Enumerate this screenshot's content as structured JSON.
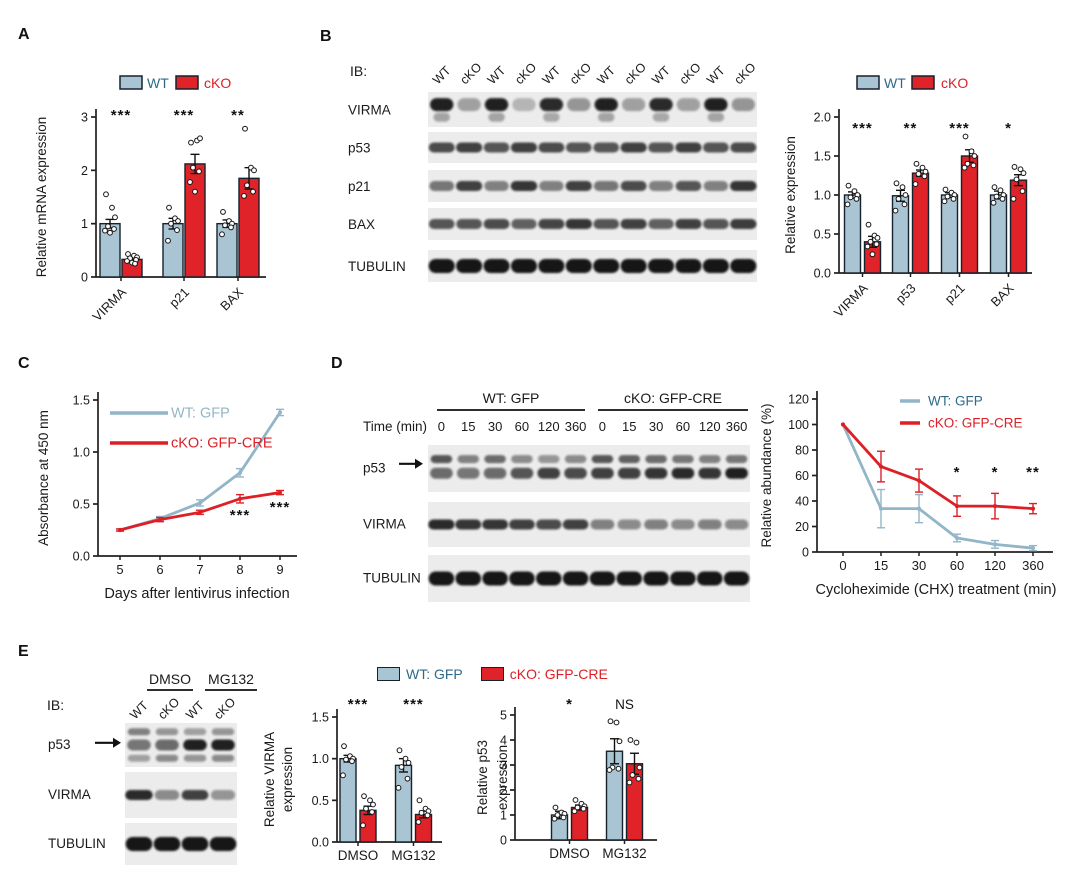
{
  "panels": {
    "A": "A",
    "B": "B",
    "C": "C",
    "D": "D",
    "E": "E"
  },
  "colors": {
    "wt_fill": "#a9c4d2",
    "wt_line": "#92b6c7",
    "wt_text": "#2d6a88",
    "cko_fill": "#e02328",
    "cko_line": "#dc2026",
    "cko_text": "#dc2026",
    "bar_stroke": "#16222c",
    "axis": "#221f1f",
    "band": "#121212",
    "strip_bg": "#ececec",
    "sig": "#111111"
  },
  "legends": {
    "wt_cko": {
      "wt": "WT",
      "cko": "cKO"
    },
    "gfp": {
      "wt": "WT: GFP",
      "cko": "cKO: GFP-CRE"
    }
  },
  "chart_data": [
    {
      "id": "panelA",
      "type": "bar",
      "ylabel": "Relative mRNA expression",
      "categories": [
        "VIRMA",
        "p21",
        "BAX"
      ],
      "yticks": [
        "0",
        "1",
        "2",
        "3"
      ],
      "ylim": [
        0,
        3
      ],
      "legend": [
        "WT",
        "cKO"
      ],
      "legend_position": "top",
      "series": [
        {
          "name": "WT",
          "values": [
            1.0,
            1.0,
            1.0
          ],
          "errors": [
            0.08,
            0.1,
            0.07
          ],
          "points": [
            [
              1.55,
              1.3,
              1.12,
              0.95,
              0.9,
              0.87,
              0.83
            ],
            [
              1.3,
              1.1,
              1.05,
              1.0,
              0.88,
              0.68
            ],
            [
              1.22,
              1.05,
              1.0,
              0.97,
              0.93,
              0.8
            ]
          ]
        },
        {
          "name": "cKO",
          "values": [
            0.33,
            2.12,
            1.85
          ],
          "errors": [
            0.03,
            0.18,
            0.2
          ],
          "points": [
            [
              0.43,
              0.4,
              0.37,
              0.35,
              0.32,
              0.3,
              0.27,
              0.25
            ],
            [
              2.52,
              2.56,
              2.6,
              2.05,
              1.98,
              1.78,
              1.6
            ],
            [
              2.78,
              2.05,
              2.0,
              1.72,
              1.6,
              1.52
            ]
          ]
        }
      ],
      "significance": [
        "***",
        "***",
        "**"
      ]
    },
    {
      "id": "panelB",
      "type": "bar",
      "ylabel": "Relative expression",
      "categories": [
        "VIRMA",
        "p53",
        "p21",
        "BAX"
      ],
      "yticks": [
        "0.0",
        "0.5",
        "1.0",
        "1.5",
        "2.0"
      ],
      "ylim": [
        0,
        2
      ],
      "legend": [
        "WT",
        "cKO"
      ],
      "legend_position": "top",
      "series": [
        {
          "name": "WT",
          "values": [
            1.0,
            0.99,
            1.0,
            1.0
          ],
          "errors": [
            0.04,
            0.07,
            0.03,
            0.05
          ],
          "points": [
            [
              1.12,
              1.05,
              1.0,
              0.97,
              0.95,
              0.88
            ],
            [
              1.15,
              1.1,
              1.0,
              0.95,
              0.88,
              0.8
            ],
            [
              1.07,
              1.03,
              1.0,
              0.98,
              0.95,
              0.92
            ],
            [
              1.1,
              1.06,
              1.0,
              0.98,
              0.95,
              0.9
            ]
          ]
        },
        {
          "name": "cKO",
          "values": [
            0.4,
            1.28,
            1.5,
            1.19
          ],
          "errors": [
            0.07,
            0.04,
            0.08,
            0.07
          ],
          "points": [
            [
              0.62,
              0.48,
              0.45,
              0.4,
              0.37,
              0.34,
              0.24
            ],
            [
              1.4,
              1.35,
              1.3,
              1.27,
              1.24,
              1.14
            ],
            [
              1.75,
              1.56,
              1.5,
              1.4,
              1.38,
              1.35
            ],
            [
              1.36,
              1.33,
              1.28,
              1.2,
              1.05,
              0.95
            ]
          ]
        }
      ],
      "significance": [
        "***",
        "**",
        "***",
        "*"
      ]
    },
    {
      "id": "panelC",
      "type": "line",
      "ylabel": "Absorbance at 450 nm",
      "xlabel": "Days after lentivirus infection",
      "x": [
        5,
        6,
        7,
        8,
        9
      ],
      "yticks": [
        "0.0",
        "0.5",
        "1.0",
        "1.5"
      ],
      "ylim": [
        0,
        1.5
      ],
      "series": [
        {
          "name": "WT: GFP",
          "values": [
            0.25,
            0.36,
            0.51,
            0.8,
            1.38
          ],
          "errors": [
            0.01,
            0.02,
            0.03,
            0.04,
            0.03
          ]
        },
        {
          "name": "cKO: GFP-CRE",
          "values": [
            0.25,
            0.35,
            0.42,
            0.55,
            0.61
          ],
          "errors": [
            0.01,
            0.02,
            0.02,
            0.04,
            0.02
          ]
        }
      ],
      "significance": [
        {
          "x": 8,
          "label": "***"
        },
        {
          "x": 9,
          "label": "***"
        }
      ]
    },
    {
      "id": "panelD",
      "type": "line",
      "ylabel": "Relative abundance (%)",
      "xlabel": "Cycloheximide (CHX) treatment (min)",
      "x": [
        0,
        15,
        30,
        60,
        120,
        360
      ],
      "yticks": [
        "0",
        "20",
        "40",
        "60",
        "80",
        "100",
        "120"
      ],
      "ylim": [
        0,
        120
      ],
      "series": [
        {
          "name": "WT: GFP",
          "values": [
            100,
            34,
            34,
            11,
            6,
            3
          ],
          "errors": [
            0,
            15,
            11,
            3,
            3,
            2
          ]
        },
        {
          "name": "cKO: GFP-CRE",
          "values": [
            100,
            67,
            56,
            36,
            36,
            34
          ],
          "errors": [
            0,
            12,
            9,
            8,
            10,
            4
          ]
        }
      ],
      "significance": [
        {
          "x": 60,
          "label": "*"
        },
        {
          "x": 120,
          "label": "*"
        },
        {
          "x": 360,
          "label": "**"
        }
      ]
    },
    {
      "id": "panelE_virma",
      "type": "bar",
      "ylabel": [
        "Relative VIRMA",
        "expression"
      ],
      "categories": [
        "DMSO",
        "MG132"
      ],
      "yticks": [
        "0.0",
        "0.5",
        "1.0",
        "1.5"
      ],
      "ylim": [
        0,
        1.5
      ],
      "legend": [
        "WT: GFP",
        "cKO: GFP-CRE"
      ],
      "series": [
        {
          "name": "WT: GFP",
          "values": [
            1.0,
            0.92
          ],
          "errors": [
            0.04,
            0.08
          ],
          "points": [
            [
              1.15,
              1.03,
              1.0,
              0.99,
              0.97,
              0.8
            ],
            [
              1.1,
              1.0,
              0.95,
              0.9,
              0.76,
              0.65
            ]
          ]
        },
        {
          "name": "cKO: GFP-CRE",
          "values": [
            0.38,
            0.33
          ],
          "errors": [
            0.05,
            0.04
          ],
          "points": [
            [
              0.55,
              0.5,
              0.45,
              0.4,
              0.36,
              0.2
            ],
            [
              0.5,
              0.4,
              0.37,
              0.35,
              0.32,
              0.24
            ]
          ]
        }
      ],
      "significance": [
        "***",
        "***"
      ]
    },
    {
      "id": "panelE_p53",
      "type": "bar",
      "ylabel": [
        "Relative p53",
        "expression"
      ],
      "categories": [
        "DMSO",
        "MG132"
      ],
      "yticks": [
        "0",
        "1",
        "2",
        "3",
        "4",
        "5"
      ],
      "ylim": [
        0,
        5
      ],
      "legend": [
        "WT: GFP",
        "cKO: GFP-CRE"
      ],
      "series": [
        {
          "name": "WT: GFP",
          "values": [
            1.0,
            3.55
          ],
          "errors": [
            0.15,
            0.5
          ],
          "points": [
            [
              1.3,
              1.1,
              1.05,
              1.0,
              0.9,
              0.85
            ],
            [
              4.75,
              4.7,
              3.95,
              2.9,
              2.85,
              2.8
            ]
          ]
        },
        {
          "name": "cKO: GFP-CRE",
          "values": [
            1.3,
            3.05
          ],
          "errors": [
            0.1,
            0.42
          ],
          "points": [
            [
              1.6,
              1.45,
              1.35,
              1.3,
              1.25,
              1.15
            ],
            [
              4.0,
              3.9,
              2.9,
              2.6,
              2.45,
              2.3
            ]
          ]
        }
      ],
      "significance": [
        "*",
        "NS"
      ]
    }
  ],
  "blots": {
    "B": {
      "ib_label": "IB:",
      "lane_labels": [
        "WT",
        "cKO",
        "WT",
        "cKO",
        "WT",
        "cKO",
        "WT",
        "cKO",
        "WT",
        "cKO",
        "WT",
        "cKO"
      ],
      "rows": [
        {
          "label": "VIRMA",
          "style": "virma",
          "intensities": [
            0.95,
            0.35,
            0.95,
            0.25,
            0.9,
            0.4,
            0.95,
            0.35,
            0.9,
            0.35,
            0.95,
            0.4
          ]
        },
        {
          "label": "p53",
          "style": "plain",
          "intensities": [
            0.75,
            0.8,
            0.7,
            0.8,
            0.75,
            0.7,
            0.7,
            0.8,
            0.7,
            0.8,
            0.7,
            0.75
          ]
        },
        {
          "label": "p21",
          "style": "plain",
          "intensities": [
            0.55,
            0.8,
            0.5,
            0.85,
            0.5,
            0.8,
            0.55,
            0.75,
            0.5,
            0.7,
            0.5,
            0.85
          ]
        },
        {
          "label": "BAX",
          "style": "plain",
          "intensities": [
            0.7,
            0.7,
            0.75,
            0.65,
            0.78,
            0.85,
            0.7,
            0.8,
            0.65,
            0.8,
            0.7,
            0.82
          ]
        },
        {
          "label": "TUBULIN",
          "style": "tubulin",
          "intensities": [
            1,
            1,
            1,
            1,
            1,
            1,
            1,
            1,
            1,
            1,
            1,
            1
          ]
        }
      ]
    },
    "D": {
      "group_headers": [
        "WT: GFP",
        "cKO: GFP-CRE"
      ],
      "time_label": "Time (min)",
      "time_points": [
        "0",
        "15",
        "30",
        "60",
        "120",
        "360",
        "0",
        "15",
        "30",
        "60",
        "120",
        "360"
      ],
      "rows": [
        {
          "label": "p53",
          "arrow": true,
          "style": "double",
          "upper": [
            0.7,
            0.5,
            0.6,
            0.45,
            0.4,
            0.45,
            0.7,
            0.65,
            0.6,
            0.55,
            0.5,
            0.55
          ],
          "intensities": [
            0.6,
            0.55,
            0.6,
            0.7,
            0.8,
            0.75,
            0.8,
            0.8,
            0.85,
            0.9,
            0.85,
            0.95
          ]
        },
        {
          "label": "VIRMA",
          "style": "plain",
          "intensities": [
            0.9,
            0.85,
            0.85,
            0.8,
            0.75,
            0.8,
            0.5,
            0.45,
            0.5,
            0.45,
            0.5,
            0.45
          ]
        },
        {
          "label": "TUBULIN",
          "style": "tubulin",
          "intensities": [
            1,
            1,
            1,
            1,
            1,
            1,
            1,
            1,
            1,
            1,
            1,
            1
          ]
        }
      ]
    },
    "E": {
      "ib_label": "IB:",
      "group_headers": [
        "DMSO",
        "MG132"
      ],
      "lane_labels": [
        "WT",
        "cKO",
        "WT",
        "cKO"
      ],
      "rows": [
        {
          "label": "p53",
          "arrow": true,
          "style": "triple",
          "upper": [
            0.5,
            0.4,
            0.35,
            0.4
          ],
          "intensities": [
            0.55,
            0.6,
            0.95,
            0.95
          ],
          "lower": [
            0.35,
            0.45,
            0.4,
            0.45
          ]
        },
        {
          "label": "VIRMA",
          "style": "plain",
          "intensities": [
            0.9,
            0.45,
            0.8,
            0.4
          ]
        },
        {
          "label": "TUBULIN",
          "style": "tubulin",
          "intensities": [
            1,
            1,
            1,
            1
          ]
        }
      ]
    }
  }
}
